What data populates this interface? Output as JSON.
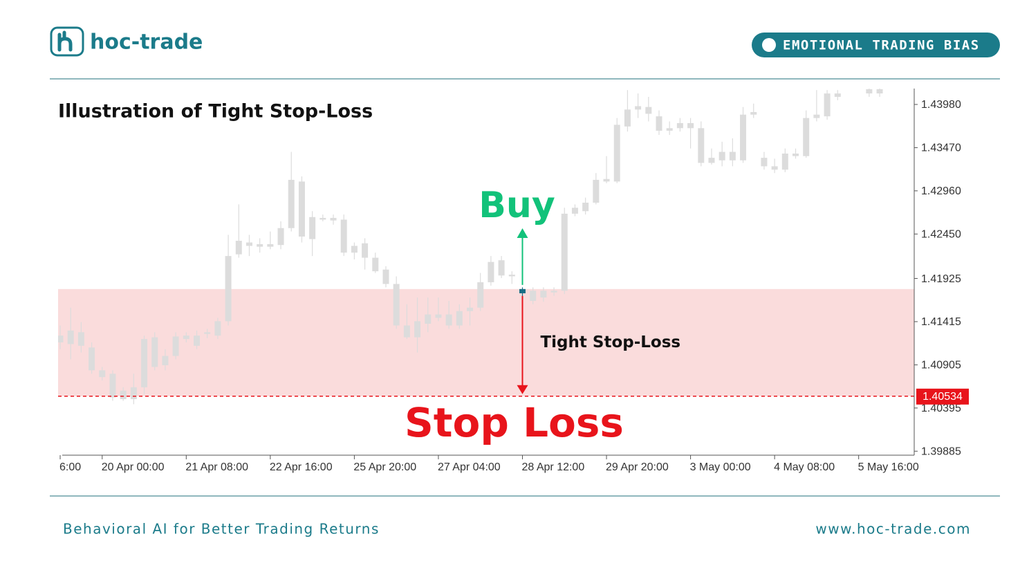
{
  "header": {
    "brand": "hoc-trade",
    "badge": "EMOTIONAL TRADING BIAS"
  },
  "chart_data": {
    "type": "candlestick",
    "title": "Illustration of Tight Stop-Loss",
    "categories": [
      "6:00",
      null,
      null,
      null,
      "20 Apr 00:00",
      null,
      null,
      null,
      null,
      null,
      null,
      null,
      "21 Apr 08:00",
      null,
      null,
      null,
      null,
      null,
      null,
      null,
      "22 Apr 16:00",
      null,
      null,
      null,
      null,
      null,
      null,
      null,
      "25 Apr 20:00",
      null,
      null,
      null,
      null,
      null,
      null,
      null,
      "27 Apr 04:00",
      null,
      null,
      null,
      null,
      null,
      null,
      null,
      "28 Apr 12:00",
      null,
      null,
      null,
      null,
      null,
      null,
      null,
      "29 Apr 20:00",
      null,
      null,
      null,
      null,
      null,
      null,
      null,
      "3 May 00:00",
      null,
      null,
      null,
      null,
      null,
      null,
      null,
      "4 May 08:00",
      null,
      null,
      null,
      null,
      null,
      null,
      null,
      "5 May 16:00",
      null,
      null
    ],
    "open": [
      1.4125,
      1.4115,
      1.4129,
      1.4111,
      1.4084,
      1.408,
      1.406,
      1.405,
      1.4064,
      1.4123,
      1.409,
      1.4101,
      1.4121,
      1.4125,
      1.4127,
      1.4125,
      1.4142,
      1.4221,
      1.4235,
      1.4233,
      1.4233,
      1.4232,
      1.4252,
      1.4307,
      1.4239,
      1.4264,
      1.4264,
      1.4262,
      1.4223,
      1.4234,
      1.4217,
      1.4203,
      1.4186,
      1.4137,
      1.4123,
      1.4139,
      1.4146,
      1.415,
      1.4137,
      1.4154,
      1.4158,
      1.4188,
      1.4214,
      1.4197,
      1.4175,
      1.4178,
      1.417,
      1.4176,
      1.4178,
      1.4269,
      1.4272,
      1.4282,
      1.4307,
      1.4307,
      1.4372,
      1.4392,
      1.4395,
      1.4384,
      1.4367,
      1.437,
      1.4376,
      1.437,
      1.4329,
      1.4332,
      1.4342,
      1.4332,
      1.4386,
      1.4335,
      1.4325,
      1.4321,
      1.4337,
      1.4337,
      1.4382,
      1.4384,
      1.4407,
      null,
      null,
      1.4411,
      1.4416
    ],
    "high": [
      1.4137,
      1.4158,
      1.4141,
      1.4117,
      1.4088,
      1.4084,
      1.4064,
      1.408,
      1.4125,
      1.4129,
      1.4109,
      1.4129,
      1.4129,
      1.4131,
      1.4133,
      1.4146,
      1.4244,
      1.428,
      1.4244,
      1.424,
      1.4248,
      1.426,
      1.4342,
      1.4313,
      1.4272,
      1.4268,
      1.4268,
      1.4268,
      1.4235,
      1.424,
      1.4223,
      1.4207,
      1.4195,
      1.4162,
      1.417,
      1.417,
      1.417,
      1.4166,
      1.4162,
      1.417,
      1.4199,
      1.4219,
      1.4219,
      1.4201,
      1.4182,
      1.4182,
      1.4182,
      1.4182,
      1.4276,
      1.428,
      1.4288,
      1.4317,
      1.4337,
      1.4382,
      1.4415,
      1.4411,
      1.4407,
      1.4391,
      1.4378,
      1.4382,
      1.4382,
      1.4378,
      1.4346,
      1.4354,
      1.4358,
      1.4395,
      1.4399,
      1.4342,
      1.4334,
      1.4346,
      1.4346,
      1.4391,
      1.4415,
      1.4415,
      1.4415,
      null,
      null,
      1.4417,
      1.4417
    ],
    "low": [
      1.4109,
      1.4097,
      1.4105,
      1.408,
      1.4072,
      1.4048,
      1.4048,
      1.4044,
      1.4056,
      1.4084,
      1.4084,
      1.4097,
      1.4117,
      1.4109,
      1.4122,
      1.4121,
      1.4137,
      1.4217,
      1.4219,
      1.4223,
      1.4227,
      1.4227,
      1.4248,
      1.4235,
      1.4219,
      1.426,
      1.4256,
      1.4219,
      1.4215,
      1.4203,
      1.4199,
      1.4182,
      1.4133,
      1.4121,
      1.4105,
      1.4129,
      1.4142,
      1.4133,
      1.4133,
      1.4137,
      1.4154,
      1.4184,
      1.4193,
      1.4186,
      1.4168,
      1.4162,
      1.4165,
      1.4172,
      1.4174,
      1.4266,
      1.4268,
      1.428,
      1.4305,
      1.4305,
      1.4366,
      1.4382,
      1.4378,
      1.4362,
      1.4362,
      1.4366,
      1.4346,
      1.4325,
      1.4327,
      1.4325,
      1.4325,
      1.4329,
      1.4382,
      1.4321,
      1.4317,
      1.4318,
      1.4334,
      1.4335,
      1.4378,
      1.438,
      1.4403,
      null,
      null,
      1.4407,
      1.4407
    ],
    "close": [
      1.4117,
      1.4131,
      1.4113,
      1.4084,
      1.4076,
      1.4052,
      1.405,
      1.4064,
      1.4121,
      1.4088,
      1.4101,
      1.4124,
      1.4125,
      1.4113,
      1.4129,
      1.4142,
      1.4219,
      1.4237,
      1.4231,
      1.423,
      1.423,
      1.4252,
      1.4309,
      1.4242,
      1.4265,
      1.4262,
      1.4261,
      1.4223,
      1.4231,
      1.4217,
      1.4201,
      1.4186,
      1.4137,
      1.4123,
      1.4142,
      1.415,
      1.415,
      1.4137,
      1.4154,
      1.4158,
      1.4188,
      1.4212,
      1.4196,
      1.4195,
      1.418,
      1.4166,
      1.4178,
      1.4178,
      1.4269,
      1.4276,
      1.4282,
      1.4309,
      1.431,
      1.4374,
      1.4392,
      1.4396,
      1.4387,
      1.4367,
      1.437,
      1.4376,
      1.437,
      1.4329,
      1.4335,
      1.4342,
      1.4332,
      1.4386,
      1.4389,
      1.4325,
      1.4321,
      1.434,
      1.434,
      1.4382,
      1.4386,
      1.4411,
      1.4411,
      null,
      null,
      1.4416,
      1.4411
    ],
    "color": "#dcdcdc",
    "entry_index": 44,
    "entry_color": "#1b6f86",
    "ylim": [
      1.39838,
      1.44168
    ],
    "yticks": [
      {
        "value": 1.4398,
        "label": "1.43980"
      },
      {
        "value": 1.4347,
        "label": "1.43470"
      },
      {
        "value": 1.4296,
        "label": "1.42960"
      },
      {
        "value": 1.4245,
        "label": "1.42450"
      },
      1.41925,
      1.41415,
      1.40905,
      1.40395,
      1.39885
    ],
    "grid": false,
    "stop_loss": 1.40534,
    "stop_color": "#e8141b",
    "zone_color": "#fadcdc",
    "buy_color": "#12c27a",
    "annotations": {
      "buy": "Buy",
      "tight": "Tight Stop-Loss",
      "stop": "Stop Loss"
    }
  },
  "footer": {
    "tagline": "Behavioral AI for Better Trading Returns",
    "url": "www.hoc-trade.com"
  }
}
